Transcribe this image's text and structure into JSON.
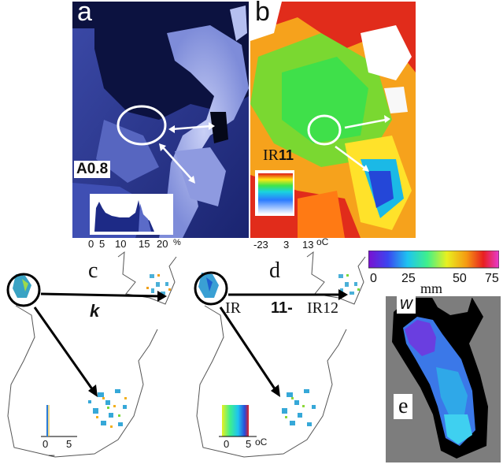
{
  "panels": {
    "a": {
      "letter": "a",
      "band_label": "A0.8",
      "hist_ticks": [
        "0",
        "5",
        "10",
        "15",
        "20"
      ],
      "hist_unit": "%"
    },
    "b": {
      "letter": "b",
      "band_label_prefix": "IR",
      "band_label_num": "11",
      "scale_ticks": [
        "-23",
        "3",
        "13"
      ],
      "scale_unit": "oC"
    },
    "c": {
      "letter": "c",
      "annotation": "k",
      "scale_ticks": [
        "0",
        "5"
      ],
      "scale_mark": "_"
    },
    "d": {
      "letter": "d",
      "label_part1": "IR",
      "label_part2": "11-",
      "label_part3": "IR12",
      "scale_ticks": [
        "0",
        "5"
      ],
      "scale_unit": "oC"
    },
    "e": {
      "letter": "e",
      "corner_label": "w"
    }
  },
  "colorbar": {
    "ticks": [
      "0",
      "25",
      "50",
      "75"
    ],
    "unit": "mm"
  },
  "colors": {
    "panel_a_dark": "#0c1240",
    "panel_a_light": "#9aa6e8",
    "panel_e_bg": "#7d7d7d",
    "arrow": "#000000"
  }
}
